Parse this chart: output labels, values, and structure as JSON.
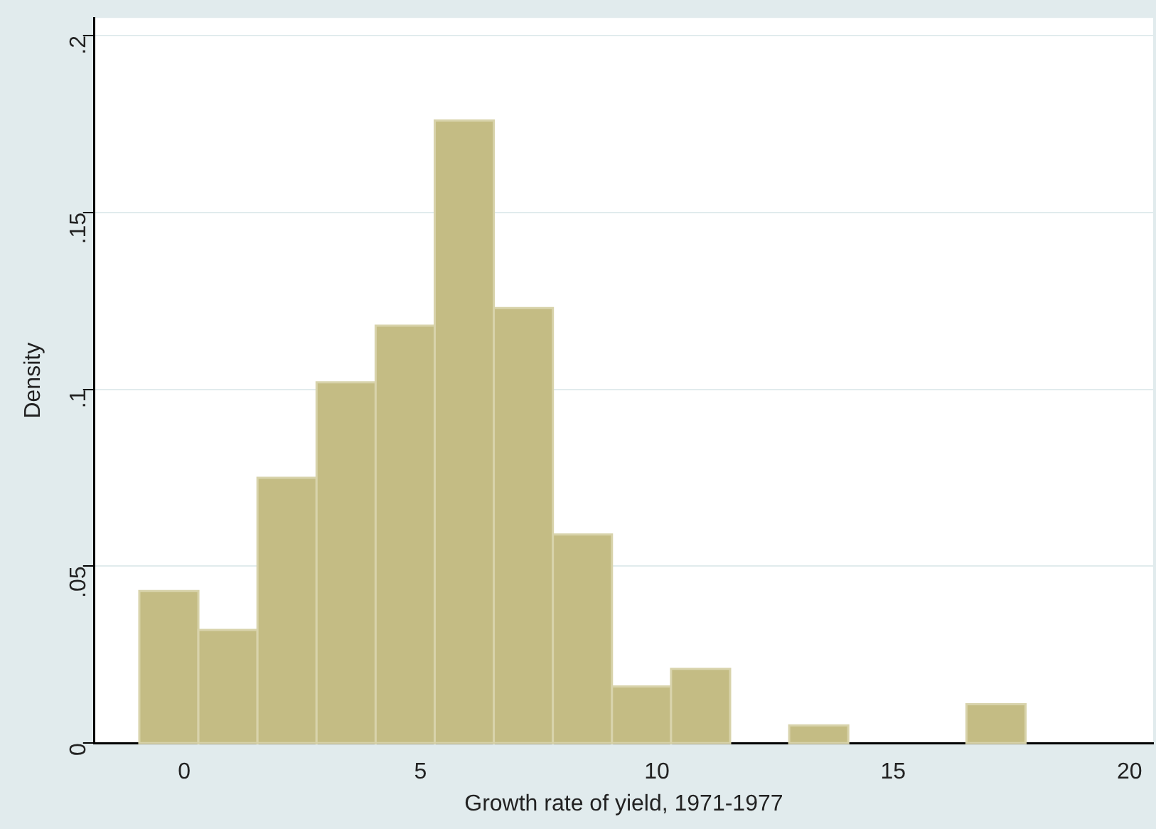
{
  "chart_data": {
    "type": "histogram",
    "xlabel": "Growth rate of yield, 1971-1977",
    "ylabel": "Density",
    "bins": [
      -0.95,
      0.3,
      1.55,
      2.8,
      4.05,
      5.3,
      6.55,
      7.8,
      9.05,
      10.3,
      11.55,
      12.8,
      14.05,
      15.3,
      16.55,
      17.8
    ],
    "values": [
      0.043,
      0.032,
      0.075,
      0.102,
      0.118,
      0.176,
      0.123,
      0.059,
      0.016,
      0.021,
      0,
      0.005,
      0,
      0,
      0.011
    ],
    "color": "#c4bc84",
    "xlim": [
      -1.9,
      20.5
    ],
    "xticks": [
      0,
      5,
      10,
      15,
      20
    ],
    "ylim": [
      0,
      0.205
    ],
    "yticks": [
      0,
      {
        "value": 0.05,
        "label": ".05"
      },
      {
        "value": 0.1,
        "label": ".1"
      },
      {
        "value": 0.15,
        "label": ".15"
      },
      {
        "value": 0.2,
        "label": ".2"
      }
    ],
    "grid": "y",
    "legend": false
  }
}
